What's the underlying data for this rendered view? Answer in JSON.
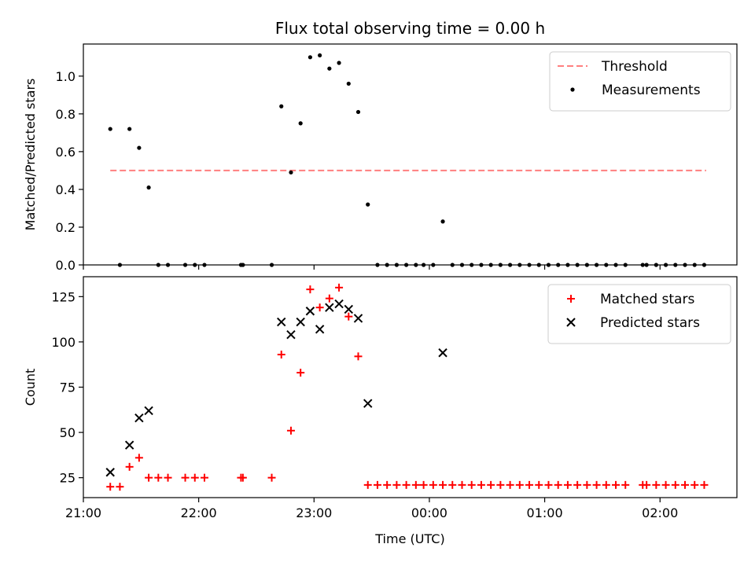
{
  "chart_data": [
    {
      "type": "scatter",
      "title": "Flux total observing time = 0.00 h",
      "xlabel": "",
      "ylabel": "Matched/Predicted stars",
      "xlim": [
        "21:00",
        "02:40"
      ],
      "ylim": [
        0,
        1.17
      ],
      "yticks": [
        "0.0",
        "0.2",
        "0.4",
        "0.6",
        "0.8",
        "1.0"
      ],
      "xticks": [
        "21:00",
        "22:00",
        "23:00",
        "00:00",
        "01:00",
        "02:00"
      ],
      "xtick_labels_visible": false,
      "legend_position": "upper right",
      "threshold": {
        "name": "Threshold",
        "value": 0.5,
        "x_range": [
          "21:14",
          "02:24"
        ],
        "color": "#ff7f7f",
        "style": "dashed"
      },
      "series": [
        {
          "name": "Measurements",
          "color": "#000000",
          "marker": "dot",
          "points": [
            [
              "21:14",
              0.72
            ],
            [
              "21:19",
              0.0
            ],
            [
              "21:24",
              0.72
            ],
            [
              "21:29",
              0.62
            ],
            [
              "21:34",
              0.41
            ],
            [
              "21:39",
              0.0
            ],
            [
              "21:44",
              0.0
            ],
            [
              "21:53",
              0.0
            ],
            [
              "21:58",
              0.0
            ],
            [
              "22:03",
              0.0
            ],
            [
              "22:22",
              0.0
            ],
            [
              "22:23",
              0.0
            ],
            [
              "22:38",
              0.0
            ],
            [
              "22:43",
              0.84
            ],
            [
              "22:48",
              0.49
            ],
            [
              "22:53",
              0.75
            ],
            [
              "22:58",
              1.1
            ],
            [
              "23:03",
              1.11
            ],
            [
              "23:08",
              1.04
            ],
            [
              "23:13",
              1.07
            ],
            [
              "23:18",
              0.96
            ],
            [
              "23:23",
              0.81
            ],
            [
              "23:28",
              0.32
            ],
            [
              "23:33",
              0.0
            ],
            [
              "23:38",
              0.0
            ],
            [
              "23:43",
              0.0
            ],
            [
              "23:48",
              0.0
            ],
            [
              "23:53",
              0.0
            ],
            [
              "23:57",
              0.0
            ],
            [
              "00:02",
              0.0
            ],
            [
              "00:07",
              0.23
            ],
            [
              "00:12",
              0.0
            ],
            [
              "00:17",
              0.0
            ],
            [
              "00:22",
              0.0
            ],
            [
              "00:27",
              0.0
            ],
            [
              "00:32",
              0.0
            ],
            [
              "00:37",
              0.0
            ],
            [
              "00:42",
              0.0
            ],
            [
              "00:47",
              0.0
            ],
            [
              "00:52",
              0.0
            ],
            [
              "00:57",
              0.0
            ],
            [
              "01:02",
              0.0
            ],
            [
              "01:07",
              0.0
            ],
            [
              "01:12",
              0.0
            ],
            [
              "01:17",
              0.0
            ],
            [
              "01:22",
              0.0
            ],
            [
              "01:27",
              0.0
            ],
            [
              "01:32",
              0.0
            ],
            [
              "01:37",
              0.0
            ],
            [
              "01:42",
              0.0
            ],
            [
              "01:51",
              0.0
            ],
            [
              "01:53",
              0.0
            ],
            [
              "01:58",
              0.0
            ],
            [
              "02:03",
              0.0
            ],
            [
              "02:08",
              0.0
            ],
            [
              "02:13",
              0.0
            ],
            [
              "02:18",
              0.0
            ],
            [
              "02:23",
              0.0
            ]
          ]
        }
      ]
    },
    {
      "type": "scatter",
      "title": "",
      "xlabel": "Time (UTC)",
      "ylabel": "Count",
      "xlim": [
        "21:00",
        "02:40"
      ],
      "ylim": [
        14,
        136
      ],
      "yticks": [
        "25",
        "50",
        "75",
        "100",
        "125"
      ],
      "xticks": [
        "21:00",
        "22:00",
        "23:00",
        "00:00",
        "01:00",
        "02:00"
      ],
      "legend_position": "upper right",
      "series": [
        {
          "name": "Matched stars",
          "color": "#ff0000",
          "marker": "plus",
          "points": [
            [
              "21:14",
              20
            ],
            [
              "21:19",
              20
            ],
            [
              "21:24",
              31
            ],
            [
              "21:29",
              36
            ],
            [
              "21:34",
              25
            ],
            [
              "21:39",
              25
            ],
            [
              "21:44",
              25
            ],
            [
              "21:53",
              25
            ],
            [
              "21:58",
              25
            ],
            [
              "22:03",
              25
            ],
            [
              "22:22",
              25
            ],
            [
              "22:23",
              25
            ],
            [
              "22:38",
              25
            ],
            [
              "22:43",
              93
            ],
            [
              "22:48",
              51
            ],
            [
              "22:53",
              83
            ],
            [
              "22:58",
              129
            ],
            [
              "23:03",
              119
            ],
            [
              "23:08",
              124
            ],
            [
              "23:13",
              130
            ],
            [
              "23:18",
              114
            ],
            [
              "23:23",
              92
            ],
            [
              "23:28",
              21
            ],
            [
              "23:33",
              21
            ],
            [
              "23:38",
              21
            ],
            [
              "23:43",
              21
            ],
            [
              "23:48",
              21
            ],
            [
              "23:53",
              21
            ],
            [
              "23:57",
              21
            ],
            [
              "00:02",
              21
            ],
            [
              "00:07",
              21
            ],
            [
              "00:12",
              21
            ],
            [
              "00:17",
              21
            ],
            [
              "00:22",
              21
            ],
            [
              "00:27",
              21
            ],
            [
              "00:32",
              21
            ],
            [
              "00:37",
              21
            ],
            [
              "00:42",
              21
            ],
            [
              "00:47",
              21
            ],
            [
              "00:52",
              21
            ],
            [
              "00:57",
              21
            ],
            [
              "01:02",
              21
            ],
            [
              "01:07",
              21
            ],
            [
              "01:12",
              21
            ],
            [
              "01:17",
              21
            ],
            [
              "01:22",
              21
            ],
            [
              "01:27",
              21
            ],
            [
              "01:32",
              21
            ],
            [
              "01:37",
              21
            ],
            [
              "01:42",
              21
            ],
            [
              "01:51",
              21
            ],
            [
              "01:53",
              21
            ],
            [
              "01:58",
              21
            ],
            [
              "02:03",
              21
            ],
            [
              "02:08",
              21
            ],
            [
              "02:13",
              21
            ],
            [
              "02:18",
              21
            ],
            [
              "02:23",
              21
            ]
          ]
        },
        {
          "name": "Predicted stars",
          "color": "#000000",
          "marker": "x",
          "points": [
            [
              "21:14",
              28
            ],
            [
              "21:24",
              43
            ],
            [
              "21:29",
              58
            ],
            [
              "21:34",
              62
            ],
            [
              "22:43",
              111
            ],
            [
              "22:48",
              104
            ],
            [
              "22:53",
              111
            ],
            [
              "22:58",
              117
            ],
            [
              "23:03",
              107
            ],
            [
              "23:08",
              119
            ],
            [
              "23:13",
              121
            ],
            [
              "23:18",
              118
            ],
            [
              "23:23",
              113
            ],
            [
              "23:28",
              66
            ],
            [
              "00:07",
              94
            ]
          ]
        }
      ]
    }
  ]
}
